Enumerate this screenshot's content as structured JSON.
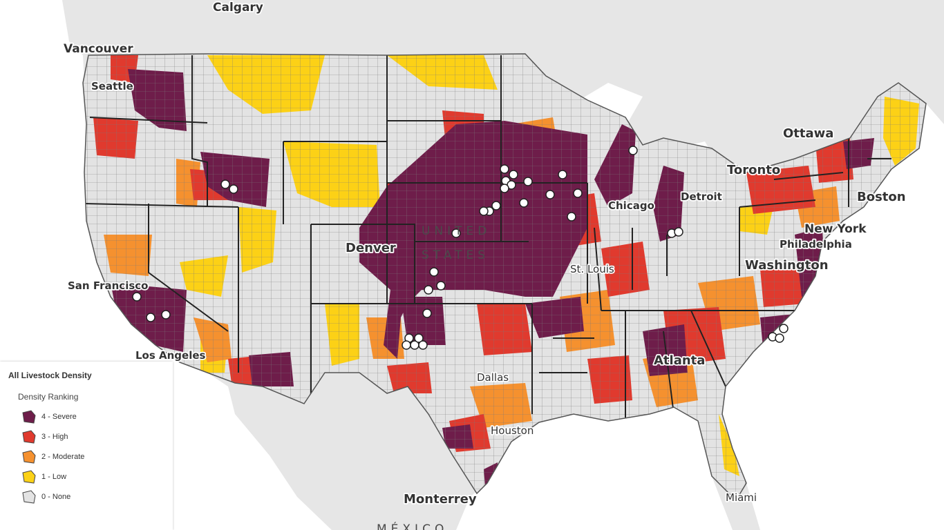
{
  "map": {
    "layer": "All Livestock Density",
    "palette": {
      "severe": "#6e1d4a",
      "high": "#e03a2e",
      "moderate": "#f5912f",
      "low": "#fcd116",
      "none": "#e3e3e3",
      "water": "#ffffff",
      "land": "#e6e6e6"
    },
    "country_labels": [
      {
        "text": "UNITED"
      },
      {
        "text": "STATES"
      },
      {
        "text": "MÉXICO"
      }
    ],
    "city_labels": [
      {
        "name": "Calgary"
      },
      {
        "name": "Vancouver"
      },
      {
        "name": "Seattle"
      },
      {
        "name": "Ottawa"
      },
      {
        "name": "Toronto"
      },
      {
        "name": "Boston"
      },
      {
        "name": "Detroit"
      },
      {
        "name": "Chicago"
      },
      {
        "name": "New York"
      },
      {
        "name": "Philadelphia"
      },
      {
        "name": "Washington"
      },
      {
        "name": "Denver"
      },
      {
        "name": "St. Louis"
      },
      {
        "name": "San Francisco"
      },
      {
        "name": "Los Angeles"
      },
      {
        "name": "Atlanta"
      },
      {
        "name": "Dallas"
      },
      {
        "name": "Houston"
      },
      {
        "name": "Monterrey"
      },
      {
        "name": "Miami"
      }
    ]
  },
  "legend": {
    "title": "All Livestock Density",
    "subtitle": "Density Ranking",
    "items": [
      {
        "label": "4 - Severe",
        "color": "#6e1d4a"
      },
      {
        "label": "3 - High",
        "color": "#e03a2e"
      },
      {
        "label": "2 - Moderate",
        "color": "#f5912f"
      },
      {
        "label": "1 - Low",
        "color": "#fcd116"
      },
      {
        "label": "0 - None",
        "color": "#e3e3e3"
      }
    ]
  }
}
